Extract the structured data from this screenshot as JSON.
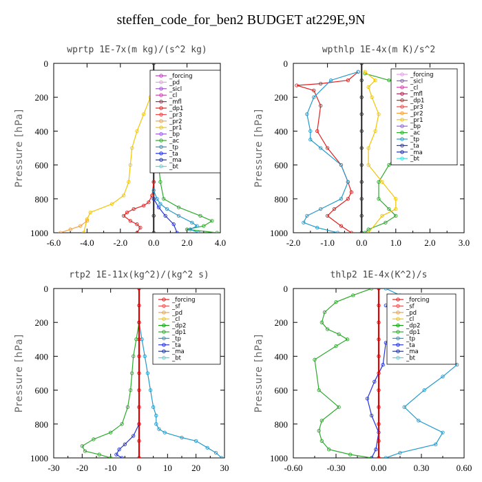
{
  "figure_title": "steffen_code_for_ben2  BUDGET at229E,9N",
  "colors": {
    "forcing": "#cc33cc",
    "pd": "#e899e8",
    "sicl": "#9955cc",
    "cl": "#cc44aa",
    "mfl": "#aa2255",
    "dp1": "#e02020",
    "dp2": "#119911",
    "pr3": "#ee4444",
    "pr2": "#f5a040",
    "pr1": "#f2c500",
    "bp": "#9a5fe8",
    "ac": "#2aaa2a",
    "tp": "#2299cc",
    "ta": "#2233dd",
    "ma": "#223399",
    "bt": "#44dddd",
    "sf": "#ee5555",
    "red": "#dd0000"
  },
  "chart_data": [
    {
      "type": "line",
      "title": "wprtp   1E-7x(m kg)/(s^2 kg)",
      "ylabel": "Pressure [hPa]",
      "xlim": [
        -6,
        4
      ],
      "ylim": [
        1000,
        0
      ],
      "xticks": [
        "-6.0",
        "-4.0",
        "-2.0",
        "0.0",
        "2.0",
        "4.0"
      ],
      "xtick_values": [
        -6,
        -4,
        -2,
        0,
        2,
        4
      ],
      "yticks": [
        "0",
        "200",
        "400",
        "600",
        "800",
        "1000"
      ],
      "ytick_values": [
        0,
        200,
        400,
        600,
        800,
        1000
      ],
      "legend": [
        "_forcing",
        "_pd",
        "_sicl",
        "_cl",
        "_mfl",
        "_dp1",
        "_pr3",
        "_pr2",
        "_pr1",
        "_bp",
        "_ac",
        "_tp",
        "_ta",
        "_ma",
        "_bt"
      ],
      "legend_colors": [
        "#cc33cc",
        "#e899e8",
        "#9955cc",
        "#cc44aa",
        "#aa2255",
        "#e02020",
        "#ee4444",
        "#f5a040",
        "#f2c500",
        "#9a5fe8",
        "#2aaa2a",
        "#2299cc",
        "#2233dd",
        "#223399",
        "#44dddd"
      ],
      "series": [
        {
          "name": "_forcing",
          "color": "#333333",
          "x": [
            0,
            0,
            0,
            0,
            0,
            0,
            0,
            0,
            0,
            0,
            0
          ],
          "y": [
            0,
            100,
            200,
            300,
            400,
            500,
            600,
            700,
            800,
            900,
            1000
          ]
        },
        {
          "name": "_pr1",
          "color": "#f2c500",
          "x": [
            0,
            -0.2,
            -0.6,
            -1.0,
            -1.3,
            -1.4,
            -1.5,
            -1.8,
            -2.5,
            -3.8,
            -4.0,
            -4.2
          ],
          "y": [
            100,
            200,
            300,
            400,
            500,
            600,
            700,
            780,
            830,
            880,
            920,
            1000
          ]
        },
        {
          "name": "_pr2",
          "color": "#f5a040",
          "x": [
            -4.0,
            -4.4,
            -5.0,
            -5.6
          ],
          "y": [
            930,
            960,
            980,
            1000
          ]
        },
        {
          "name": "_dp1",
          "color": "#e02020",
          "x": [
            0,
            -0.1,
            -0.3,
            -0.6,
            -1.2,
            -1.6,
            -1.8,
            -1.4,
            -1.0,
            -0.8,
            -1.0
          ],
          "y": [
            700,
            780,
            820,
            840,
            860,
            880,
            900,
            930,
            950,
            970,
            1000
          ]
        },
        {
          "name": "_ac",
          "color": "#2aaa2a",
          "x": [
            0,
            0.3,
            0.3,
            0.3,
            0.3,
            0.3,
            0.4,
            0.6,
            1.5,
            2.8,
            3.5,
            3.0,
            2.0,
            3.8
          ],
          "y": [
            150,
            200,
            300,
            400,
            500,
            600,
            700,
            800,
            850,
            900,
            930,
            960,
            980,
            1000
          ]
        },
        {
          "name": "_tp",
          "color": "#2299cc",
          "x": [
            0,
            0.2,
            0.4,
            0.8,
            1.5,
            2.3,
            2.6,
            2.2,
            2.7
          ],
          "y": [
            750,
            800,
            830,
            860,
            900,
            940,
            960,
            980,
            1000
          ]
        },
        {
          "name": "_ta",
          "color": "#2233dd",
          "x": [
            0,
            0.3,
            0.7,
            1.2,
            1.4
          ],
          "y": [
            800,
            850,
            900,
            950,
            1000
          ]
        }
      ]
    },
    {
      "type": "line",
      "title": "wpthlp   1E-4x(m K)/s^2",
      "ylabel": "Pressure [hPa]",
      "xlim": [
        -2,
        3
      ],
      "ylim": [
        1000,
        0
      ],
      "xticks": [
        "-2.0",
        "-1.0",
        "0.0",
        "1.0",
        "2.0",
        "3.0"
      ],
      "xtick_values": [
        -2,
        -1,
        0,
        1,
        2,
        3
      ],
      "yticks": [
        "0",
        "200",
        "400",
        "600",
        "800",
        "1000"
      ],
      "ytick_values": [
        0,
        200,
        400,
        600,
        800,
        1000
      ],
      "legend": [
        "_forcing",
        "_sicl",
        "_cl",
        "_mfl",
        "_dp1",
        "_pr3",
        "_pr2",
        "_pr1",
        "_bp",
        "_ac",
        "_tp",
        "_ta",
        "_ma",
        "_bt"
      ],
      "legend_colors": [
        "#e899e8",
        "#9955cc",
        "#cc44aa",
        "#aa2255",
        "#e02020",
        "#ee4444",
        "#f5a040",
        "#f2c500",
        "#9a5fe8",
        "#2aaa2a",
        "#2299cc",
        "#2233dd",
        "#223399",
        "#44dddd"
      ],
      "series": [
        {
          "name": "_forcing",
          "color": "#333333",
          "x": [
            0,
            0,
            0,
            0,
            0,
            0,
            0,
            0,
            0,
            0,
            0
          ],
          "y": [
            0,
            100,
            200,
            300,
            400,
            500,
            600,
            700,
            800,
            900,
            1000
          ]
        },
        {
          "name": "_dp1",
          "color": "#e02020",
          "x": [
            -0.1,
            -0.4,
            -1.2,
            -1.9,
            -1.4,
            -1.2,
            -1.3,
            -1.0,
            -0.6,
            -0.4,
            -0.3,
            -0.4,
            -0.8,
            -1.0,
            -0.6,
            -0.3
          ],
          "y": [
            50,
            100,
            120,
            130,
            160,
            250,
            400,
            500,
            600,
            700,
            760,
            800,
            860,
            900,
            960,
            1000
          ]
        },
        {
          "name": "_tp",
          "color": "#2299cc",
          "x": [
            -0.1,
            -0.9,
            -1.4,
            -1.6,
            -1.5,
            -1.5,
            -1.2,
            -0.6,
            -0.4,
            -0.6,
            -1.2,
            -1.6,
            -1.7,
            -1.3,
            -0.7
          ],
          "y": [
            50,
            100,
            200,
            300,
            400,
            450,
            500,
            600,
            700,
            800,
            860,
            900,
            940,
            970,
            1000
          ]
        },
        {
          "name": "_ac",
          "color": "#2aaa2a",
          "x": [
            0.1,
            0.8,
            1.8,
            2.2,
            2.3,
            1.8,
            1.2,
            0.8,
            0.5,
            0.5,
            0.8,
            1.0,
            0.7,
            0.2,
            0.1
          ],
          "y": [
            60,
            100,
            140,
            200,
            300,
            400,
            500,
            600,
            700,
            800,
            860,
            900,
            940,
            980,
            1000
          ]
        },
        {
          "name": "_pr1",
          "color": "#f2c500",
          "x": [
            0.1,
            0.4,
            0.2,
            0.3,
            0.5,
            0.4,
            0.2,
            0.2,
            0.6,
            1.0,
            1.0,
            0.6,
            0.2
          ],
          "y": [
            50,
            100,
            140,
            200,
            300,
            400,
            500,
            600,
            700,
            800,
            860,
            900,
            1000
          ]
        }
      ]
    },
    {
      "type": "line",
      "title": "rtp2   1E-11x(kg^2)/(kg^2 s)",
      "ylabel": "Pressure [hPa]",
      "xlim": [
        -30,
        30
      ],
      "ylim": [
        1000,
        0
      ],
      "xticks": [
        "-30",
        "-20",
        "-10",
        "0",
        "10",
        "20",
        "30"
      ],
      "xtick_values": [
        -30,
        -20,
        -10,
        0,
        10,
        20,
        30
      ],
      "yticks": [
        "0",
        "200",
        "400",
        "600",
        "800",
        "1000"
      ],
      "ytick_values": [
        0,
        200,
        400,
        600,
        800,
        1000
      ],
      "legend": [
        "_forcing",
        "_sf",
        "_pd",
        "_cl",
        "_dp2",
        "_dp1",
        "_tp",
        "_ta",
        "_ma",
        "_bt"
      ],
      "legend_colors": [
        "#e02020",
        "#ee5555",
        "#f5a040",
        "#f2c500",
        "#119911",
        "#2aaa2a",
        "#2299cc",
        "#2233dd",
        "#223399",
        "#44dddd"
      ],
      "series": [
        {
          "name": "_tp",
          "color": "#2299cc",
          "x": [
            0,
            1,
            2,
            3,
            4,
            5,
            6,
            6,
            7,
            9,
            15,
            20,
            24,
            27,
            29
          ],
          "y": [
            200,
            300,
            400,
            500,
            600,
            700,
            750,
            800,
            830,
            850,
            880,
            900,
            940,
            970,
            1000
          ]
        },
        {
          "name": "_dp1",
          "color": "#2aaa2a",
          "x": [
            0,
            -1,
            -2,
            -2.5,
            -3,
            -4,
            -6,
            -10,
            -16,
            -20,
            -19,
            -14,
            -10
          ],
          "y": [
            200,
            300,
            400,
            500,
            600,
            700,
            800,
            850,
            890,
            930,
            960,
            980,
            1000
          ]
        },
        {
          "name": "_ta",
          "color": "#2233dd",
          "x": [
            0,
            -2,
            -5,
            -7,
            -8,
            -6
          ],
          "y": [
            800,
            870,
            920,
            950,
            980,
            1000
          ]
        },
        {
          "name": "_forcing",
          "color": "#dd0000",
          "x": [
            0,
            0,
            0,
            0,
            0,
            0,
            0,
            0,
            0,
            0,
            0
          ],
          "y": [
            0,
            100,
            200,
            300,
            400,
            500,
            600,
            700,
            800,
            900,
            1000
          ]
        }
      ]
    },
    {
      "type": "line",
      "title": "thlp2   1E-4x(K^2)/s",
      "ylabel": "Pressure [hPa]",
      "xlim": [
        -0.6,
        0.6
      ],
      "ylim": [
        1000,
        0
      ],
      "xticks": [
        "-0.60",
        "-0.30",
        "0.00",
        "0.30",
        "0.60"
      ],
      "xtick_values": [
        -0.6,
        -0.3,
        0,
        0.3,
        0.6
      ],
      "yticks": [
        "0",
        "200",
        "400",
        "600",
        "800",
        "1000"
      ],
      "ytick_values": [
        0,
        200,
        400,
        600,
        800,
        1000
      ],
      "legend": [
        "_forcing",
        "_sf",
        "_pd",
        "_cl",
        "_dp2",
        "_dp1",
        "_tp",
        "_ta",
        "_ma",
        "_bt"
      ],
      "legend_colors": [
        "#e02020",
        "#ee5555",
        "#f5a040",
        "#f2c500",
        "#119911",
        "#2aaa2a",
        "#2299cc",
        "#2233dd",
        "#223399",
        "#44dddd"
      ],
      "series": [
        {
          "name": "_dp1",
          "color": "#2aaa2a",
          "x": [
            -0.05,
            -0.18,
            -0.3,
            -0.38,
            -0.4,
            -0.36,
            -0.28,
            -0.22,
            -0.3,
            -0.45,
            -0.42,
            -0.28,
            -0.4,
            -0.42,
            -0.4,
            -0.35,
            -0.2,
            -0.05
          ],
          "y": [
            0,
            40,
            80,
            140,
            200,
            240,
            270,
            300,
            340,
            420,
            600,
            700,
            780,
            840,
            900,
            950,
            980,
            1000
          ]
        },
        {
          "name": "_tp",
          "color": "#2299cc",
          "x": [
            0.05,
            0.15,
            0.2,
            0.22,
            0.32,
            0.5,
            0.55,
            0.45,
            0.32,
            0.18,
            0.28,
            0.45,
            0.4,
            0.15,
            0.05
          ],
          "y": [
            0,
            40,
            100,
            200,
            300,
            400,
            450,
            520,
            600,
            700,
            780,
            850,
            920,
            970,
            1000
          ]
        },
        {
          "name": "_ta",
          "color": "#2233dd",
          "x": [
            0.05,
            0.12,
            0.1,
            0.15,
            0.05,
            0.03,
            -0.03,
            -0.08,
            -0.05,
            0.0,
            -0.02,
            -0.05
          ],
          "y": [
            100,
            140,
            200,
            260,
            320,
            450,
            550,
            650,
            750,
            850,
            950,
            1000
          ]
        },
        {
          "name": "_forcing",
          "color": "#dd0000",
          "x": [
            0,
            0,
            0,
            0,
            0,
            0,
            0,
            0,
            0,
            0,
            0
          ],
          "y": [
            0,
            100,
            200,
            300,
            400,
            500,
            600,
            700,
            800,
            900,
            1000
          ]
        }
      ]
    }
  ]
}
